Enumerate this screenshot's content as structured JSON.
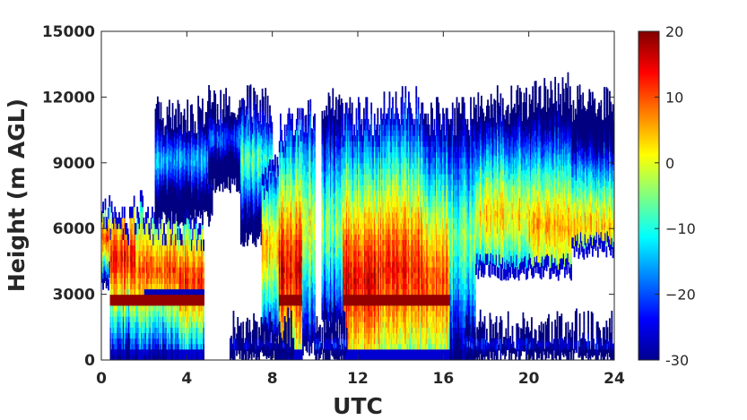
{
  "chart_data": {
    "type": "heatmap",
    "title": "",
    "xlabel": "UTC",
    "ylabel": "Height (m AGL)",
    "x_ticks": [
      "0",
      "4",
      "8",
      "12",
      "16",
      "20",
      "24"
    ],
    "y_ticks": [
      "0",
      "3000",
      "6000",
      "9000",
      "12000",
      "15000"
    ],
    "xlim": [
      0,
      24
    ],
    "ylim": [
      0,
      15000
    ],
    "colormap": "jet",
    "colorbar": {
      "range": [
        -30,
        20
      ],
      "ticks": [
        "-30",
        "−20",
        "−10",
        "0",
        "10",
        "20"
      ],
      "tick_values": [
        -30,
        -20,
        -10,
        0,
        10,
        20
      ]
    },
    "grid": false,
    "columns": [
      {
        "x": [
          0.0,
          0.4
        ],
        "bottom": 3500,
        "top": 6800,
        "core": 5500,
        "peak": 10
      },
      {
        "x": [
          0.4,
          1.6
        ],
        "bottom": 0,
        "top": 6500,
        "core": 4500,
        "peak": 12,
        "melt": [
          2400,
          2900
        ]
      },
      {
        "x": [
          1.6,
          2.0
        ],
        "bottom": 0,
        "top": 7000,
        "core": 4000,
        "peak": 8,
        "melt": [
          2300,
          2900
        ]
      },
      {
        "x": [
          2.0,
          3.6
        ],
        "bottom": 0,
        "top": 6500,
        "core": 4000,
        "peak": 10,
        "melt": [
          2300,
          3000
        ]
      },
      {
        "x": [
          3.6,
          4.8
        ],
        "bottom": 0,
        "top": 6000,
        "core": 3500,
        "peak": 12,
        "melt": [
          2400,
          3100
        ]
      },
      {
        "x": [
          2.5,
          5.2
        ],
        "bottom": 6500,
        "top": 11000,
        "core": 9000,
        "peak": -15
      },
      {
        "x": [
          5.0,
          7.0
        ],
        "bottom": 8000,
        "top": 11500,
        "core": 10000,
        "peak": -20
      },
      {
        "x": [
          6.5,
          8.0
        ],
        "bottom": 5500,
        "top": 11500,
        "core": 9000,
        "peak": -8
      },
      {
        "x": [
          7.5,
          8.3
        ],
        "bottom": 1000,
        "top": 8500,
        "core": 5000,
        "peak": 5
      },
      {
        "x": [
          8.3,
          9.4
        ],
        "bottom": 0,
        "top": 10500,
        "core": 4000,
        "peak": 14,
        "melt": [
          2400,
          2900
        ]
      },
      {
        "x": [
          9.4,
          10.0
        ],
        "bottom": 500,
        "top": 11000,
        "core": 6000,
        "peak": 0
      },
      {
        "x": [
          10.3,
          11.3
        ],
        "bottom": 1500,
        "top": 11500,
        "core": 6000,
        "peak": -5
      },
      {
        "x": [
          11.3,
          13.0
        ],
        "bottom": 0,
        "top": 11000,
        "core": 3500,
        "peak": 15,
        "melt": [
          2400,
          2900
        ]
      },
      {
        "x": [
          13.0,
          15.0
        ],
        "bottom": 0,
        "top": 11500,
        "core": 4000,
        "peak": 12,
        "melt": [
          2400,
          2900
        ]
      },
      {
        "x": [
          15.0,
          16.3
        ],
        "bottom": 0,
        "top": 11000,
        "core": 3500,
        "peak": 10,
        "melt": [
          2400,
          2900
        ]
      },
      {
        "x": [
          16.3,
          17.5
        ],
        "bottom": 0,
        "top": 11000,
        "core": 5500,
        "peak": -5
      },
      {
        "x": [
          17.5,
          20.0
        ],
        "bottom": 4000,
        "top": 11500,
        "core": 6500,
        "peak": 2
      },
      {
        "x": [
          20.0,
          22.0
        ],
        "bottom": 4000,
        "top": 12000,
        "core": 6000,
        "peak": 4
      },
      {
        "x": [
          22.0,
          24.0
        ],
        "bottom": 5000,
        "top": 11500,
        "core": 6000,
        "peak": 3
      },
      {
        "x": [
          17.0,
          24.0
        ],
        "bottom": 100,
        "top": 1300,
        "core": 600,
        "peak": -22
      },
      {
        "x": [
          6.0,
          9.0
        ],
        "bottom": 100,
        "top": 1400,
        "core": 600,
        "peak": -25
      },
      {
        "x": [
          10.0,
          11.5
        ],
        "bottom": 100,
        "top": 1200,
        "core": 600,
        "peak": -22
      }
    ]
  }
}
